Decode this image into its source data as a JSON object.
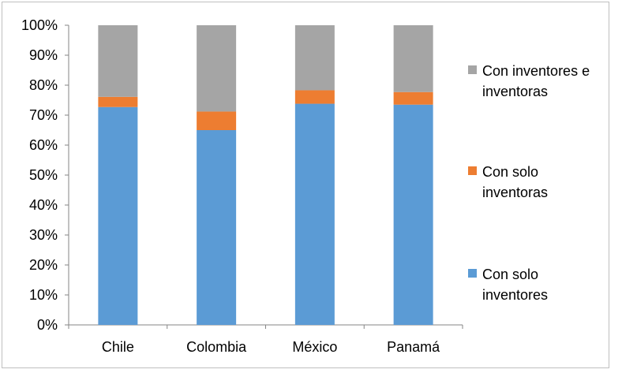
{
  "chart_data": {
    "type": "bar",
    "stacked": true,
    "categories": [
      "Chile",
      "Colombia",
      "México",
      "Panamá"
    ],
    "series": [
      {
        "name": "Con solo inventores",
        "color": "#5b9bd5",
        "values": [
          72.7,
          65.0,
          73.8,
          73.5
        ]
      },
      {
        "name": "Con solo inventoras",
        "color": "#ed7d31",
        "values": [
          3.4,
          6.2,
          4.5,
          4.2
        ]
      },
      {
        "name": "Con inventores e inventoras",
        "color": "#a5a5a5",
        "values": [
          23.9,
          28.8,
          21.7,
          22.3
        ]
      }
    ],
    "y_ticks": [
      "0%",
      "10%",
      "20%",
      "30%",
      "40%",
      "50%",
      "60%",
      "70%",
      "80%",
      "90%",
      "100%"
    ],
    "ylim": [
      0,
      100
    ],
    "grid": false,
    "legend_position": "right"
  }
}
